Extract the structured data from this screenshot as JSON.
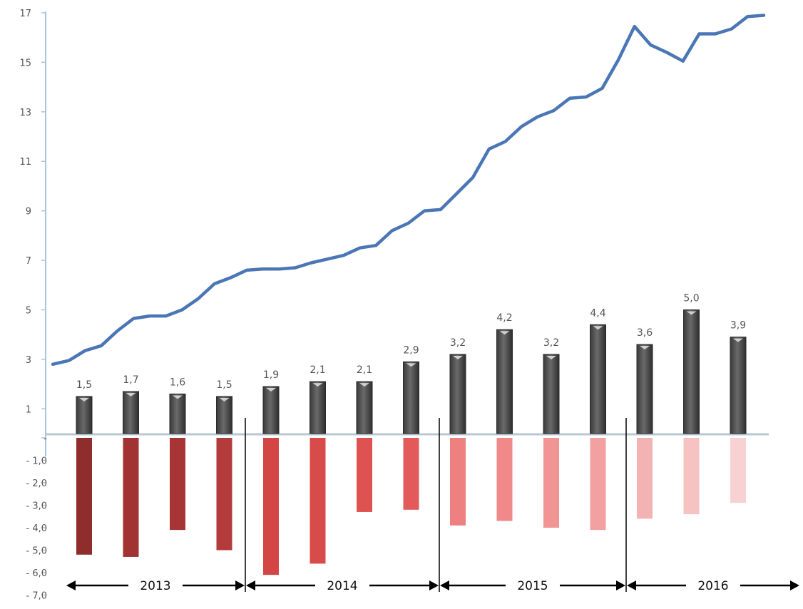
{
  "chart_data": {
    "type": "bar",
    "series": [
      {
        "kind": "line",
        "color": "#4a76b6",
        "values": [
          2.8,
          2.95,
          3.35,
          3.55,
          4.15,
          4.65,
          4.75,
          4.75,
          5.0,
          5.45,
          6.05,
          6.3,
          6.6,
          6.65,
          6.65,
          6.7,
          6.9,
          7.05,
          7.2,
          7.5,
          7.6,
          8.2,
          8.5,
          9.0,
          9.05,
          9.7,
          10.35,
          11.5,
          11.8,
          12.4,
          12.8,
          13.05,
          13.55,
          13.6,
          13.95,
          15.1,
          16.45,
          15.7,
          15.4,
          15.05,
          16.15,
          16.15,
          16.35,
          16.85,
          16.9
        ]
      },
      {
        "kind": "bar-positive",
        "color": "#555555",
        "values": [
          1.5,
          1.7,
          1.6,
          1.5,
          1.9,
          2.1,
          2.1,
          2.9,
          3.2,
          4.2,
          3.2,
          4.4,
          3.6,
          5.0,
          3.9
        ],
        "labels": [
          "1,5",
          "1,7",
          "1,6",
          "1,5",
          "1,9",
          "2,1",
          "2,1",
          "2,9",
          "3,2",
          "4,2",
          "3,2",
          "4,4",
          "3,6",
          "5,0",
          "3,9"
        ]
      },
      {
        "kind": "bar-negative",
        "color": "#c0392b",
        "values": [
          -5.2,
          -5.3,
          -4.1,
          -5.0,
          -6.1,
          -5.6,
          -3.3,
          -3.2,
          -3.9,
          -3.7,
          -4.0,
          -4.1,
          -3.6,
          -3.4,
          -2.9
        ],
        "colors": [
          "#8f2d2d",
          "#a13333",
          "#a83535",
          "#b33b3b",
          "#d44646",
          "#d84b4b",
          "#de5252",
          "#e25a5a",
          "#ee8080",
          "#f08a8a",
          "#f19494",
          "#f3a0a0",
          "#f4b3b3",
          "#f6c2c2",
          "#f8d2d2"
        ]
      }
    ],
    "y_upper": {
      "ticks": [
        1,
        3,
        5,
        7,
        9,
        11,
        13,
        15,
        17
      ],
      "tick_labels": [
        "1",
        "3",
        "5",
        "7",
        "9",
        "11",
        "13",
        "15",
        "17"
      ],
      "range": [
        0,
        17
      ]
    },
    "y_lower": {
      "ticks": [
        0,
        -1,
        -2,
        -3,
        -4,
        -5,
        -6,
        -7
      ],
      "tick_labels": [
        "-",
        "- 1,0",
        "- 2,0",
        "- 3,0",
        "- 4,0",
        "- 5,0",
        "- 6,0",
        "- 7,0"
      ],
      "range": [
        -7,
        0
      ]
    },
    "years": [
      {
        "label": "2013",
        "from_bar": 0,
        "to_bar": 3
      },
      {
        "label": "2014",
        "from_bar": 4,
        "to_bar": 7
      },
      {
        "label": "2015",
        "from_bar": 8,
        "to_bar": 11
      },
      {
        "label": "2016",
        "from_bar": 12,
        "to_bar": 14
      }
    ],
    "title": "",
    "xlabel": "",
    "ylabel": "",
    "grid": false,
    "legend": "none"
  }
}
